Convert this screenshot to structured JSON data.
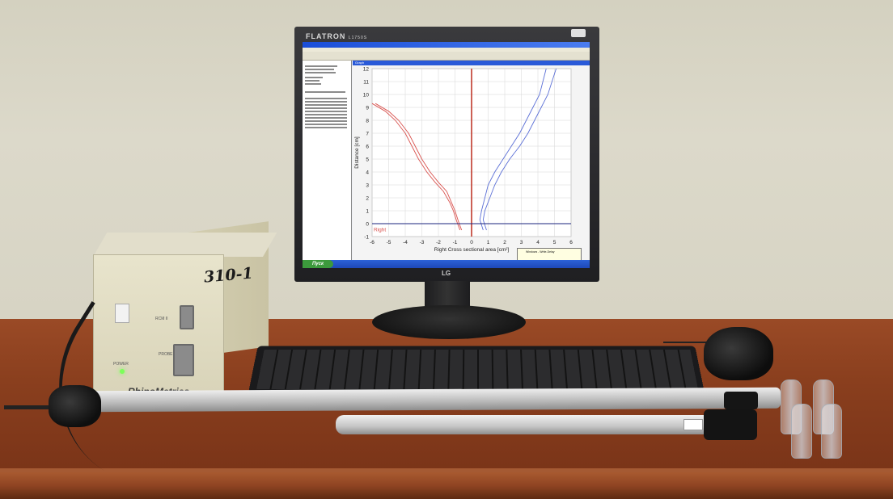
{
  "monitor": {
    "brand": "FLATRON",
    "brand_sub": "L1750S",
    "logo": "LG"
  },
  "device": {
    "handwritten_label": "310-1",
    "brand": "RhinoMetrics",
    "port_labels": [
      "RCM II",
      "POWER",
      "PROBE"
    ]
  },
  "software": {
    "graph_tab": "Graph",
    "start_button": "Пуск",
    "balloon_title": "Windows - Write-Delay",
    "side_label": "Right",
    "chart_data": {
      "type": "line",
      "xlabel": "Right    Cross sectional area [cm²]",
      "ylabel": "Distance [cm]",
      "xlim": [
        -6,
        6
      ],
      "ylim": [
        -1,
        12
      ],
      "x_ticks": [
        -6,
        -5,
        -4,
        -3,
        -2,
        -1,
        0,
        1,
        2,
        3,
        4,
        5,
        6
      ],
      "y_ticks": [
        -1,
        0,
        1,
        2,
        3,
        4,
        5,
        6,
        7,
        8,
        9,
        10,
        11,
        12
      ],
      "grid": true,
      "series": [
        {
          "color": "#d9534f",
          "x": [
            -0.6,
            -0.8,
            -1.0,
            -1.2,
            -1.5,
            -2.0,
            -2.5,
            -3.0,
            -3.4,
            -3.8,
            -4.4,
            -5.0,
            -5.8
          ],
          "y": [
            -0.5,
            0.2,
            1.0,
            1.6,
            2.5,
            3.2,
            4.0,
            5.0,
            6.0,
            7.0,
            8.0,
            8.7,
            9.3
          ]
        },
        {
          "color": "#d9534f",
          "x": [
            -0.7,
            -0.9,
            -1.1,
            -1.3,
            -1.7,
            -2.2,
            -2.7,
            -3.2,
            -3.6,
            -4.0,
            -4.6,
            -5.2,
            -6.0
          ],
          "y": [
            -0.5,
            0.2,
            1.0,
            1.6,
            2.5,
            3.2,
            4.0,
            5.0,
            6.0,
            7.0,
            8.0,
            8.7,
            9.3
          ]
        },
        {
          "color": "#5b6fd6",
          "x": [
            0.7,
            0.5,
            0.6,
            0.8,
            1.0,
            1.4,
            1.9,
            2.4,
            2.9,
            3.3,
            3.7,
            4.1,
            4.5
          ],
          "y": [
            -0.5,
            0.3,
            1.0,
            2.0,
            3.0,
            4.0,
            5.0,
            6.0,
            7.0,
            8.0,
            9.0,
            10.0,
            12.0
          ]
        },
        {
          "color": "#5b6fd6",
          "x": [
            0.9,
            0.7,
            0.8,
            1.1,
            1.4,
            1.8,
            2.3,
            2.9,
            3.4,
            3.8,
            4.2,
            4.6,
            5.1
          ],
          "y": [
            -0.5,
            0.3,
            1.0,
            2.0,
            3.0,
            4.0,
            5.0,
            6.0,
            7.0,
            8.0,
            9.0,
            10.0,
            12.0
          ]
        }
      ],
      "center_line": {
        "x": 0,
        "color": "#c0392b"
      },
      "baseline": {
        "y": 0,
        "color": "#1a237e"
      }
    }
  }
}
